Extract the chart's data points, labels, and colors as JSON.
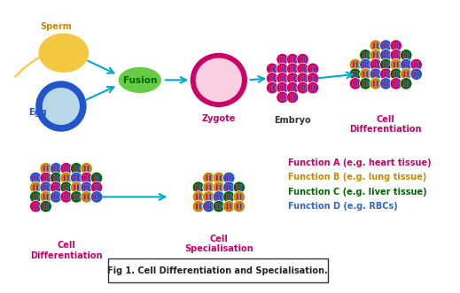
{
  "title": "Fig 1. Cell Differentiation and Specialisation.",
  "sperm_label": "Sperm",
  "egg_label": "Egg",
  "fusion_label": "Fusion",
  "zygote_label": "Zygote",
  "embryo_label": "Embryo",
  "cell_diff_label": "Cell\nDifferentiation",
  "cell_diff_label2": "Cell\nDifferentiation",
  "cell_spec_label": "Cell\nSpecialisation",
  "func_a": "Function A (e.g. heart tissue)",
  "func_b": "Function B (e.g. lung tissue)",
  "func_c": "Function C (e.g. liver tissue)",
  "func_d": "Function D (e.g. RBCs)",
  "func_a_color": "#cc0066",
  "func_b_color": "#cc8800",
  "func_c_color": "#006600",
  "func_d_color": "#3366cc",
  "sperm_color": "#f5c842",
  "sperm_label_color": "#cc8800",
  "egg_outer_color": "#2255cc",
  "egg_inner_color": "#b8d8e8",
  "egg_label_color": "#2255cc",
  "fusion_color": "#66cc44",
  "fusion_text_color": "#006600",
  "zygote_outer_color": "#cc0066",
  "zygote_inner_color": "#f8d0e0",
  "zygote_text_color": "#cc0066",
  "embryo_cell_color": "#cc0066",
  "arrow_color": "#00aacc",
  "chrom_red": "#cc0044",
  "chrom_blue": "#2244cc",
  "pink_cell_colors": [
    "#cc0066",
    "#dd2288"
  ],
  "mixed_cell_colors": [
    "#cc8800",
    "#2255cc",
    "#cc0066",
    "#006600"
  ],
  "bg_color": "#ffffff"
}
